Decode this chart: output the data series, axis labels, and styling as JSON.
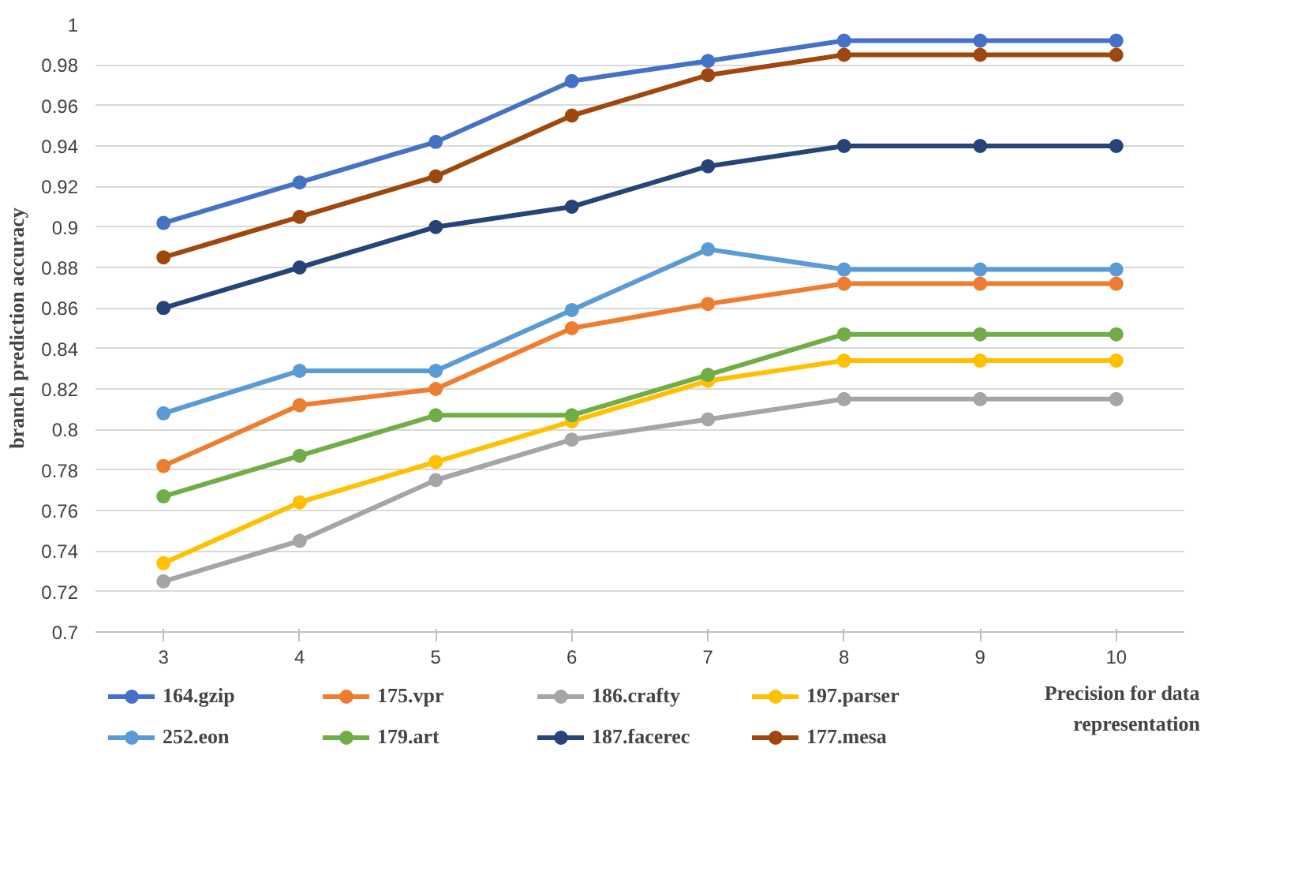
{
  "chart_data": {
    "type": "line",
    "xlabel": "Precision for data representation",
    "ylabel": "branch prediction accuracy",
    "categories": [
      "3",
      "4",
      "5",
      "6",
      "7",
      "8",
      "9",
      "10"
    ],
    "ylim": [
      0.7,
      1
    ],
    "yticks": [
      0.7,
      0.72,
      0.74,
      0.76,
      0.78,
      0.8,
      0.82,
      0.84,
      0.86,
      0.88,
      0.9,
      0.92,
      0.94,
      0.96,
      0.98,
      1
    ],
    "grid": "y",
    "legend": "bottom",
    "marker": "circle",
    "line_style": "solid",
    "series": [
      {
        "name": "164.gzip",
        "color": "#4472c4",
        "values": [
          0.902,
          0.922,
          0.942,
          0.972,
          0.982,
          0.992,
          0.992,
          0.992
        ]
      },
      {
        "name": "175.vpr",
        "color": "#ed7d31",
        "values": [
          0.782,
          0.812,
          0.82,
          0.85,
          0.862,
          0.872,
          0.872,
          0.872
        ]
      },
      {
        "name": "186.crafty",
        "color": "#a5a5a5",
        "values": [
          0.725,
          0.745,
          0.775,
          0.795,
          0.805,
          0.815,
          0.815,
          0.815
        ]
      },
      {
        "name": "197.parser",
        "color": "#ffc000",
        "values": [
          0.734,
          0.764,
          0.784,
          0.804,
          0.824,
          0.834,
          0.834,
          0.834
        ]
      },
      {
        "name": "252.eon",
        "color": "#5b9bd5",
        "values": [
          0.808,
          0.829,
          0.829,
          0.859,
          0.889,
          0.879,
          0.879,
          0.879
        ]
      },
      {
        "name": "179.art",
        "color": "#70ad47",
        "values": [
          0.767,
          0.787,
          0.807,
          0.807,
          0.827,
          0.847,
          0.847,
          0.847
        ]
      },
      {
        "name": "187.facerec",
        "color": "#264478",
        "values": [
          0.86,
          0.88,
          0.9,
          0.91,
          0.93,
          0.94,
          0.94,
          0.94
        ]
      },
      {
        "name": "177.mesa",
        "color": "#9e480e",
        "values": [
          0.885,
          0.905,
          0.925,
          0.955,
          0.975,
          0.985,
          0.985,
          0.985
        ]
      }
    ]
  }
}
